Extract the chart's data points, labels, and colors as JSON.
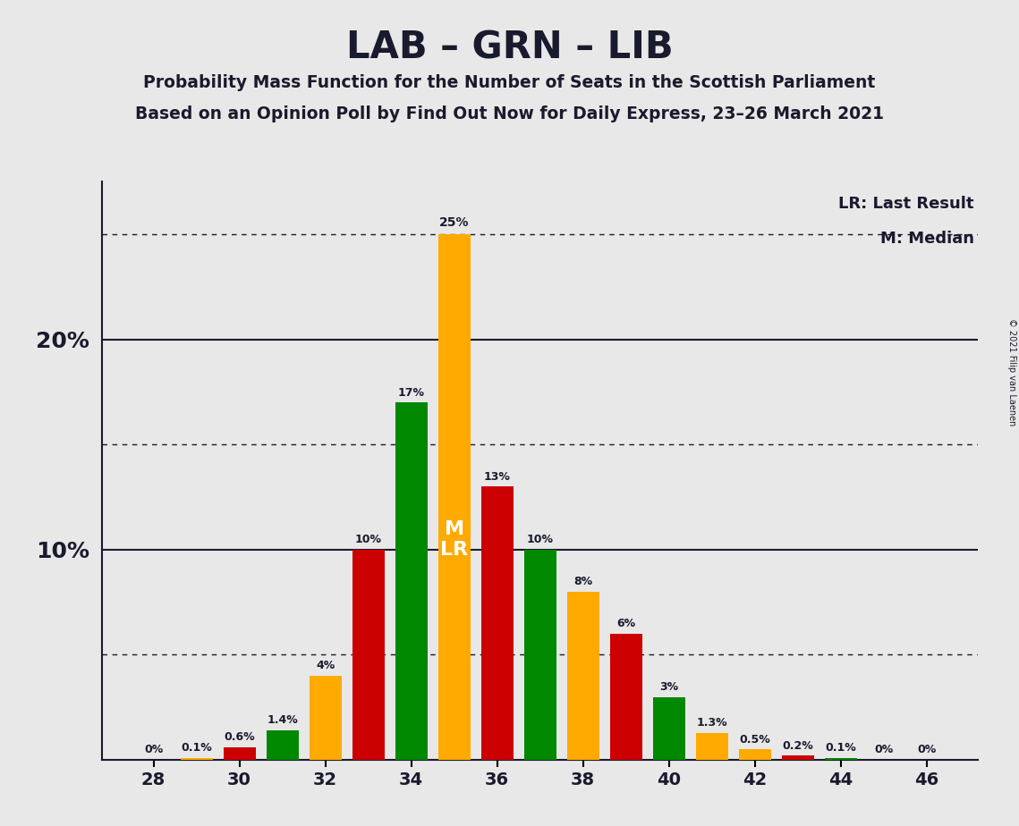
{
  "title": "LAB – GRN – LIB",
  "subtitle1": "Probability Mass Function for the Number of Seats in the Scottish Parliament",
  "subtitle2": "Based on an Opinion Poll by Find Out Now for Daily Express, 23–26 March 2021",
  "copyright": "© 2021 Filip van Laenen",
  "legend_lr": "LR: Last Result",
  "legend_m": "M: Median",
  "background_color": "#e8e8e8",
  "seats": [
    28,
    29,
    30,
    31,
    32,
    33,
    34,
    35,
    36,
    37,
    38,
    39,
    40,
    41,
    42,
    43,
    44,
    45,
    46
  ],
  "values": [
    0.0,
    0.1,
    0.6,
    1.4,
    4.0,
    10.0,
    17.0,
    25.0,
    13.0,
    10.0,
    8.0,
    6.0,
    3.0,
    1.3,
    0.5,
    0.2,
    0.1,
    0.0,
    0.0
  ],
  "colors": [
    "#ffaa00",
    "#ffaa00",
    "#cc0000",
    "#008800",
    "#ffaa00",
    "#cc0000",
    "#008800",
    "#ffaa00",
    "#cc0000",
    "#008800",
    "#ffaa00",
    "#cc0000",
    "#008800",
    "#ffaa00",
    "#ffaa00",
    "#cc0000",
    "#008800",
    "#cc0000",
    "#008800"
  ],
  "lab_color": "#cc0000",
  "grn_color": "#008800",
  "lib_color": "#ffaa00",
  "median_seat": 35,
  "last_result_seat": 35,
  "ylim": [
    0,
    27.5
  ],
  "bar_width": 0.75,
  "xtick_even": [
    28,
    30,
    32,
    34,
    36,
    38,
    40,
    42,
    44,
    46
  ]
}
